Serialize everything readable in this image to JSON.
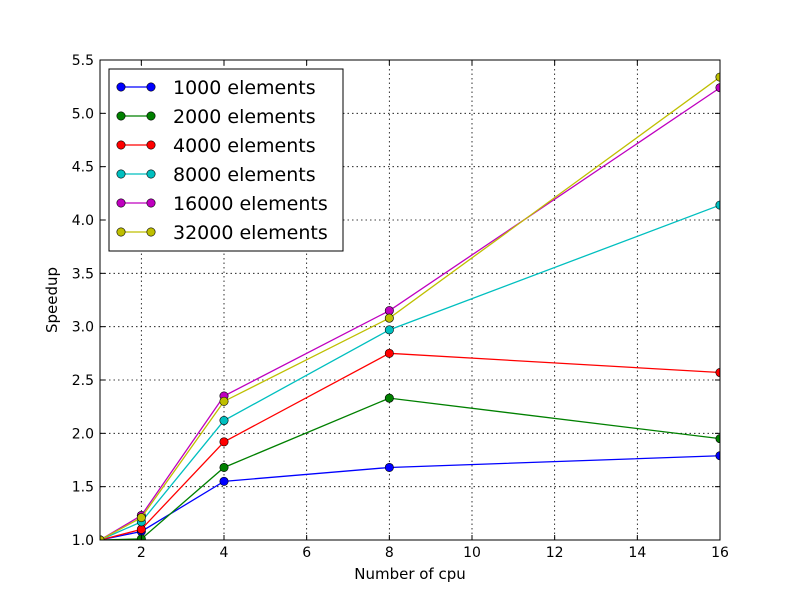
{
  "chart_data": {
    "type": "line",
    "title": "",
    "xlabel": "Number of cpu",
    "ylabel": "Speedup",
    "xlim": [
      1,
      16
    ],
    "ylim": [
      1.0,
      5.5
    ],
    "xticks": [
      2,
      4,
      6,
      8,
      10,
      12,
      14,
      16
    ],
    "xtick_labels": [
      "2",
      "4",
      "6",
      "8",
      "10",
      "12",
      "14",
      "16"
    ],
    "yticks": [
      1.0,
      1.5,
      2.0,
      2.5,
      3.0,
      3.5,
      4.0,
      4.5,
      5.0,
      5.5
    ],
    "ytick_labels": [
      "1.0",
      "1.5",
      "2.0",
      "2.5",
      "3.0",
      "3.5",
      "4.0",
      "4.5",
      "5.0",
      "5.5"
    ],
    "grid": true,
    "legend_position": "top-left",
    "x": [
      1,
      2,
      4,
      8,
      16
    ],
    "series": [
      {
        "name": "1000 elements",
        "color": "#0000ff",
        "values": [
          1.0,
          1.08,
          1.55,
          1.68,
          1.79
        ]
      },
      {
        "name": "2000 elements",
        "color": "#008000",
        "values": [
          1.0,
          1.01,
          1.68,
          2.33,
          1.95
        ]
      },
      {
        "name": "4000 elements",
        "color": "#ff0000",
        "values": [
          1.0,
          1.1,
          1.92,
          2.75,
          2.57
        ]
      },
      {
        "name": "8000 elements",
        "color": "#00bfbf",
        "values": [
          1.0,
          1.17,
          2.12,
          2.97,
          4.14
        ]
      },
      {
        "name": "16000 elements",
        "color": "#bf00bf",
        "values": [
          1.0,
          1.23,
          2.35,
          3.15,
          5.24
        ]
      },
      {
        "name": "32000 elements",
        "color": "#bfbf00",
        "values": [
          1.0,
          1.21,
          2.3,
          3.08,
          5.34
        ]
      }
    ]
  }
}
